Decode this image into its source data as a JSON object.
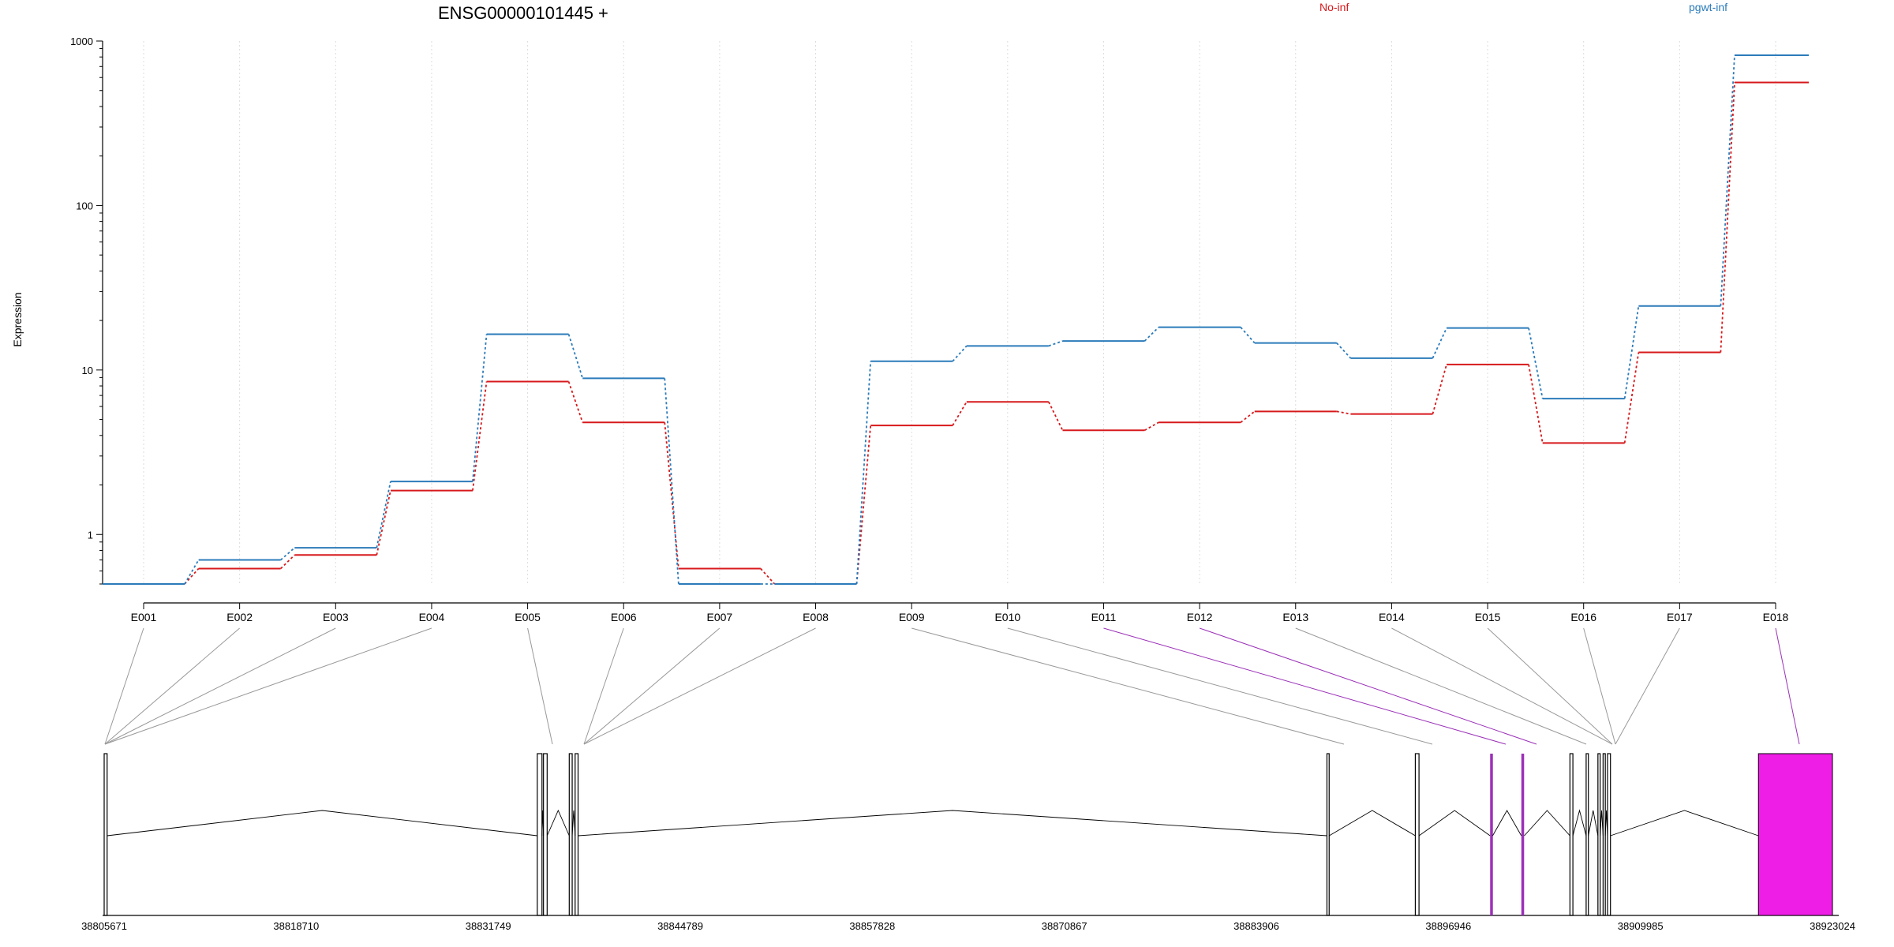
{
  "chart_data": {
    "type": "line",
    "title": "ENSG00000101445 +",
    "ylabel": "Expression",
    "xlabel": "",
    "yscale": "log",
    "ylim": [
      0.5,
      1000
    ],
    "yticks": [
      1,
      10,
      100,
      1000
    ],
    "ytick_labels": [
      "1",
      "10",
      "100",
      "1000"
    ],
    "grid": "vertical-dotted",
    "legend_position": "top",
    "categories": [
      "E001",
      "E002",
      "E003",
      "E004",
      "E005",
      "E006",
      "E007",
      "E008",
      "E009",
      "E010",
      "E011",
      "E012",
      "E013",
      "E014",
      "E015",
      "E016",
      "E017",
      "E018"
    ],
    "series": [
      {
        "name": "No-inf",
        "color": "#d7191c",
        "values": [
          0.5,
          0.62,
          0.75,
          1.85,
          8.5,
          4.8,
          0.62,
          0.5,
          4.6,
          6.4,
          4.3,
          4.8,
          5.6,
          5.4,
          10.8,
          3.6,
          12.8,
          560
        ]
      },
      {
        "name": "pgwt-inf",
        "color": "#2b7bba",
        "values": [
          0.5,
          0.7,
          0.83,
          2.1,
          16.5,
          8.9,
          0.5,
          0.5,
          11.3,
          14,
          15,
          18.2,
          14.6,
          11.8,
          18,
          6.7,
          24.5,
          820
        ]
      }
    ],
    "genome_track": {
      "coordinate_ticks": [
        "38805671",
        "38818710",
        "38831749",
        "38844789",
        "38857828",
        "38870867",
        "38883906",
        "38896946",
        "38909985",
        "38923024"
      ],
      "exon_color": "#000000",
      "highlight_color": "#ee1ee6",
      "highlight_line_color": "#9b30b8",
      "connector_color": "#999999",
      "highlighted_exons": [
        "E011",
        "E012",
        "E018"
      ]
    }
  }
}
